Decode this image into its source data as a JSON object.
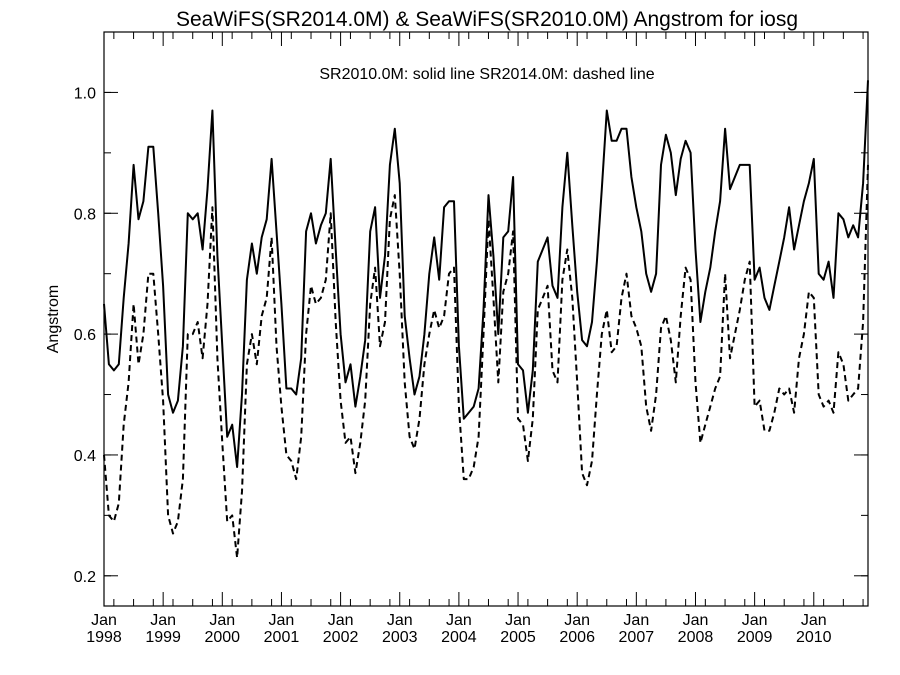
{
  "chart_data": {
    "type": "line",
    "title": "SeaWiFS(SR2014.0M) & SeaWiFS(SR2010.0M)  Angstrom for iosg",
    "legend_note": "SR2010.0M: solid line   SR2014.0M: dashed line",
    "xlabel": "",
    "ylabel": "Angstrom",
    "x_start": "1998-01",
    "x_end": "2010-12",
    "x_ticks": [
      {
        "month": "Jan",
        "year": "1998"
      },
      {
        "month": "Jan",
        "year": "1999"
      },
      {
        "month": "Jan",
        "year": "2000"
      },
      {
        "month": "Jan",
        "year": "2001"
      },
      {
        "month": "Jan",
        "year": "2002"
      },
      {
        "month": "Jan",
        "year": "2003"
      },
      {
        "month": "Jan",
        "year": "2004"
      },
      {
        "month": "Jan",
        "year": "2005"
      },
      {
        "month": "Jan",
        "year": "2006"
      },
      {
        "month": "Jan",
        "year": "2007"
      },
      {
        "month": "Jan",
        "year": "2008"
      },
      {
        "month": "Jan",
        "year": "2009"
      },
      {
        "month": "Jan",
        "year": "2010"
      }
    ],
    "ylim": [
      0.15,
      1.1
    ],
    "y_ticks": [
      "0.2",
      "0.4",
      "0.6",
      "0.8",
      "1.0"
    ],
    "series": [
      {
        "name": "SR2010.0M",
        "style": "solid",
        "values": [
          0.65,
          0.55,
          0.54,
          0.55,
          0.66,
          0.75,
          0.88,
          0.79,
          0.82,
          0.91,
          0.91,
          0.8,
          0.68,
          0.5,
          0.47,
          0.49,
          0.58,
          0.8,
          0.79,
          0.8,
          0.74,
          0.84,
          0.97,
          0.73,
          0.58,
          0.43,
          0.45,
          0.38,
          0.5,
          0.69,
          0.75,
          0.7,
          0.76,
          0.79,
          0.89,
          0.77,
          0.65,
          0.51,
          0.51,
          0.5,
          0.56,
          0.77,
          0.8,
          0.75,
          0.78,
          0.8,
          0.89,
          0.74,
          0.6,
          0.52,
          0.55,
          0.48,
          0.53,
          0.59,
          0.77,
          0.81,
          0.66,
          0.73,
          0.88,
          0.94,
          0.85,
          0.63,
          0.56,
          0.5,
          0.53,
          0.6,
          0.7,
          0.76,
          0.69,
          0.81,
          0.82,
          0.82,
          0.58,
          0.46,
          0.47,
          0.48,
          0.51,
          0.64,
          0.83,
          0.73,
          0.6,
          0.76,
          0.77,
          0.86,
          0.55,
          0.54,
          0.47,
          0.54,
          0.72,
          0.74,
          0.76,
          0.68,
          0.66,
          0.81,
          0.9,
          0.78,
          0.67,
          0.59,
          0.58,
          0.62,
          0.72,
          0.84,
          0.97,
          0.92,
          0.92,
          0.94,
          0.94,
          0.86,
          0.81,
          0.77,
          0.7,
          0.67,
          0.7,
          0.88,
          0.93,
          0.9,
          0.83,
          0.89,
          0.92,
          0.9,
          0.74,
          0.62,
          0.67,
          0.71,
          0.77,
          0.82,
          0.94,
          0.84,
          0.86,
          0.88,
          0.88,
          0.88,
          0.69,
          0.71,
          0.66,
          0.64,
          0.68,
          0.72,
          0.76,
          0.81,
          0.74,
          0.78,
          0.82,
          0.85,
          0.89,
          0.7,
          0.69,
          0.72,
          0.66,
          0.8,
          0.79,
          0.76,
          0.78,
          0.76,
          0.85,
          1.02
        ]
      },
      {
        "name": "SR2014.0M",
        "style": "dashed",
        "values": [
          0.4,
          0.3,
          0.29,
          0.32,
          0.45,
          0.52,
          0.65,
          0.55,
          0.6,
          0.7,
          0.7,
          0.6,
          0.49,
          0.3,
          0.27,
          0.29,
          0.36,
          0.6,
          0.6,
          0.62,
          0.56,
          0.65,
          0.81,
          0.56,
          0.42,
          0.29,
          0.3,
          0.23,
          0.34,
          0.55,
          0.6,
          0.55,
          0.63,
          0.66,
          0.76,
          0.58,
          0.48,
          0.4,
          0.39,
          0.36,
          0.43,
          0.6,
          0.68,
          0.65,
          0.66,
          0.69,
          0.8,
          0.62,
          0.49,
          0.42,
          0.43,
          0.37,
          0.42,
          0.49,
          0.65,
          0.71,
          0.58,
          0.62,
          0.79,
          0.83,
          0.7,
          0.52,
          0.43,
          0.41,
          0.46,
          0.55,
          0.6,
          0.64,
          0.61,
          0.63,
          0.7,
          0.71,
          0.48,
          0.36,
          0.36,
          0.38,
          0.43,
          0.6,
          0.79,
          0.66,
          0.52,
          0.67,
          0.7,
          0.77,
          0.46,
          0.45,
          0.39,
          0.46,
          0.64,
          0.66,
          0.68,
          0.54,
          0.52,
          0.69,
          0.74,
          0.66,
          0.52,
          0.37,
          0.35,
          0.39,
          0.5,
          0.6,
          0.64,
          0.57,
          0.58,
          0.66,
          0.7,
          0.63,
          0.61,
          0.58,
          0.48,
          0.44,
          0.5,
          0.61,
          0.63,
          0.59,
          0.52,
          0.63,
          0.71,
          0.69,
          0.52,
          0.42,
          0.45,
          0.48,
          0.51,
          0.53,
          0.7,
          0.56,
          0.6,
          0.64,
          0.69,
          0.72,
          0.48,
          0.49,
          0.44,
          0.44,
          0.47,
          0.51,
          0.5,
          0.51,
          0.47,
          0.56,
          0.6,
          0.67,
          0.66,
          0.5,
          0.48,
          0.49,
          0.47,
          0.57,
          0.55,
          0.49,
          0.5,
          0.51,
          0.62,
          0.88
        ]
      }
    ]
  }
}
